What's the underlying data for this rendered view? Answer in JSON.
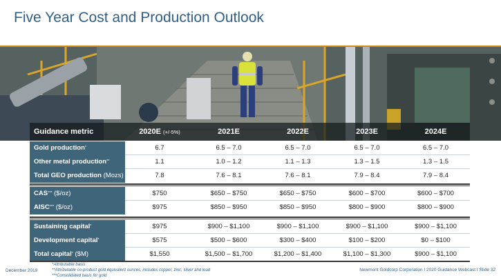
{
  "title": "Five Year Cost and Production Outlook",
  "header": {
    "metric": "Guidance metric",
    "years": [
      {
        "label": "2020E",
        "sub": "(+/-5%)"
      },
      {
        "label": "2021E",
        "sub": ""
      },
      {
        "label": "2022E",
        "sub": ""
      },
      {
        "label": "2023E",
        "sub": ""
      },
      {
        "label": "2024E",
        "sub": ""
      }
    ]
  },
  "groups": [
    {
      "rows": [
        {
          "label": "Gold production",
          "sup": "*",
          "unit": "",
          "values": [
            "6.7",
            "6.5 – 7.0",
            "6.5 – 7.0",
            "6.5 – 7.0",
            "6.5 – 7.0"
          ]
        },
        {
          "label": "Other metal production",
          "sup": "**",
          "unit": "",
          "values": [
            "1.1",
            "1.0 – 1.2",
            "1.1 – 1.3",
            "1.3 – 1.5",
            "1.3 – 1.5"
          ]
        },
        {
          "label": "Total GEO production",
          "sup": "",
          "unit": " (Mozs)",
          "values": [
            "7.8",
            "7.6 – 8.1",
            "7.6 – 8.1",
            "7.9 – 8.4",
            "7.9 – 8.4"
          ]
        }
      ]
    },
    {
      "rows": [
        {
          "label": "CAS",
          "sup": "***",
          "unit": " ($/oz)",
          "values": [
            "$750",
            "$650 – $750",
            "$650 – $750",
            "$600 – $700",
            "$600 – $700"
          ]
        },
        {
          "label": "AISC",
          "sup": "***",
          "unit": " ($/oz)",
          "values": [
            "$975",
            "$850 – $950",
            "$850 – $950",
            "$800 – $900",
            "$800 – $900"
          ]
        }
      ]
    },
    {
      "rows": [
        {
          "label": "Sustaining capital",
          "sup": "*",
          "unit": "",
          "values": [
            "$975",
            "$900 – $1,100",
            "$900 – $1,100",
            "$900 – $1,100",
            "$900 – $1,100"
          ]
        },
        {
          "label": "Development capital",
          "sup": "*",
          "unit": "",
          "values": [
            "$575",
            "$500 – $600",
            "$300 – $400",
            "$100 – $200",
            "$0 – $100"
          ]
        },
        {
          "label": "Total capital",
          "sup": "*",
          "unit": " ($M)",
          "values": [
            "$1,550",
            "$1,500 – $1,700",
            "$1,200 – $1,400",
            "$1,100 – $1,300",
            "$900 – $1,100"
          ]
        }
      ]
    }
  ],
  "footer": {
    "date": "December 2019",
    "notes": [
      "*Attributable basis",
      "**Attributable co-product gold equivalent ounces, includes copper, zinc, silver and lead",
      "***Consolidated basis for gold"
    ],
    "right": "Newmont Goldcorp Corporation  I  2020 Guidance Webcast  I  Slide 32"
  },
  "colors": {
    "title": "#2e5f8a",
    "rule": "#d4891a",
    "label_bg": "#3e6579"
  }
}
